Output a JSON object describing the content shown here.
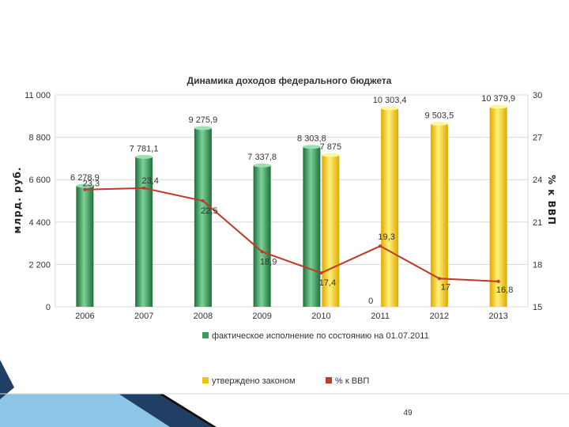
{
  "page": {
    "number": "49"
  },
  "colors": {
    "actual": "#3d9b5b",
    "approved": "#f5c400",
    "gdp_line": "#c0392b",
    "grid": "#d9d9d9",
    "footer_dark": "#1f3f64",
    "footer_light": "#8ec6e8"
  },
  "chart_data": {
    "type": "bar",
    "title": "Динамика доходов федерального бюджета",
    "ylabel": "млрд. руб.",
    "y2label": "% к ВВП",
    "categories": [
      "2006",
      "2007",
      "2008",
      "2009",
      "2010",
      "2011",
      "2012",
      "2013"
    ],
    "ylim": [
      0,
      11000
    ],
    "y2lim": [
      15,
      30
    ],
    "yticks": [
      "0",
      "2 200",
      "4 400",
      "6 600",
      "8 800",
      "11 000"
    ],
    "y2ticks": [
      "15",
      "18",
      "21",
      "24",
      "27",
      "30"
    ],
    "grid": true,
    "legend_position": "bottom",
    "series": [
      {
        "name": "фактическое исполнение по состоянию на 01.07.2011",
        "kind": "bar",
        "values": [
          6278.9,
          7781.1,
          9275.9,
          7337.8,
          8303.8,
          0,
          null,
          null
        ],
        "labels": [
          "6 278,9",
          "7 781,1",
          "9 275,9",
          "7 337,8",
          "8 303,8",
          "0",
          "",
          ""
        ]
      },
      {
        "name": "утверждено законом",
        "kind": "bar",
        "values": [
          null,
          null,
          null,
          null,
          7875,
          10303.4,
          9503.5,
          10379.9
        ],
        "labels": [
          "",
          "",
          "",
          "",
          "7 875",
          "10 303,4",
          "9 503,5",
          "10 379,9"
        ]
      },
      {
        "name": "% к ВВП",
        "kind": "line",
        "axis": "right",
        "values": [
          23.3,
          23.4,
          22.5,
          18.9,
          17.4,
          19.3,
          17,
          16.8
        ],
        "labels": [
          "23,3",
          "23,4",
          "22,5",
          "18,9",
          "17,4",
          "19,3",
          "17",
          "16,8"
        ]
      }
    ]
  }
}
